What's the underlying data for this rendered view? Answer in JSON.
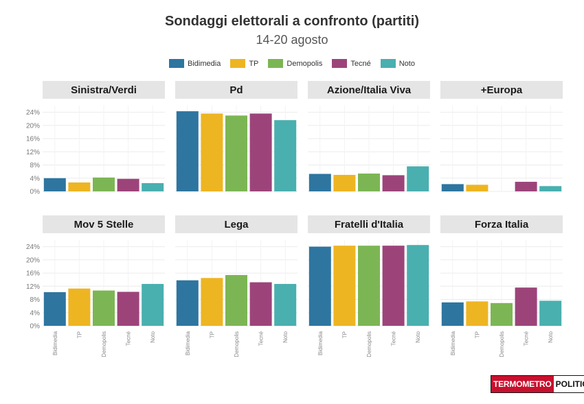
{
  "chart_data": {
    "type": "bar",
    "title": "Sondaggi elettorali a confronto (partiti)",
    "subtitle": "14-20 agosto",
    "legend_position": "top",
    "series_names": [
      "Bidimedia",
      "TP",
      "Demopolis",
      "Tecné",
      "Noto"
    ],
    "colors": [
      "#2e75a0",
      "#eeb522",
      "#7cb654",
      "#9c447a",
      "#4aafaf"
    ],
    "ylim": [
      0,
      26
    ],
    "yticks": [
      0,
      4,
      8,
      12,
      16,
      20,
      24
    ],
    "ytick_labels": [
      "0%",
      "4%",
      "8%",
      "12%",
      "16%",
      "20%",
      "24%"
    ],
    "panels": [
      {
        "name": "Sinistra/Verdi",
        "values": [
          4.0,
          2.7,
          4.2,
          3.8,
          2.5
        ]
      },
      {
        "name": "Pd",
        "values": [
          24.3,
          23.6,
          23.0,
          23.6,
          21.6
        ]
      },
      {
        "name": "Azione/Italia Viva",
        "values": [
          5.3,
          5.0,
          5.4,
          4.9,
          7.6
        ]
      },
      {
        "name": "+Europa",
        "values": [
          2.2,
          2.0,
          null,
          2.9,
          1.6
        ]
      },
      {
        "name": "Mov 5 Stelle",
        "values": [
          10.2,
          11.3,
          10.7,
          10.3,
          12.7
        ]
      },
      {
        "name": "Lega",
        "values": [
          13.8,
          14.5,
          15.4,
          13.2,
          12.7
        ]
      },
      {
        "name": "Fratelli d'Italia",
        "values": [
          24.0,
          24.3,
          24.3,
          24.3,
          24.5
        ]
      },
      {
        "name": "Forza Italia",
        "values": [
          7.1,
          7.4,
          6.9,
          11.6,
          7.6
        ]
      }
    ]
  },
  "logo": {
    "part1": "TERMOMETRO",
    "part2": "POLITICO"
  }
}
